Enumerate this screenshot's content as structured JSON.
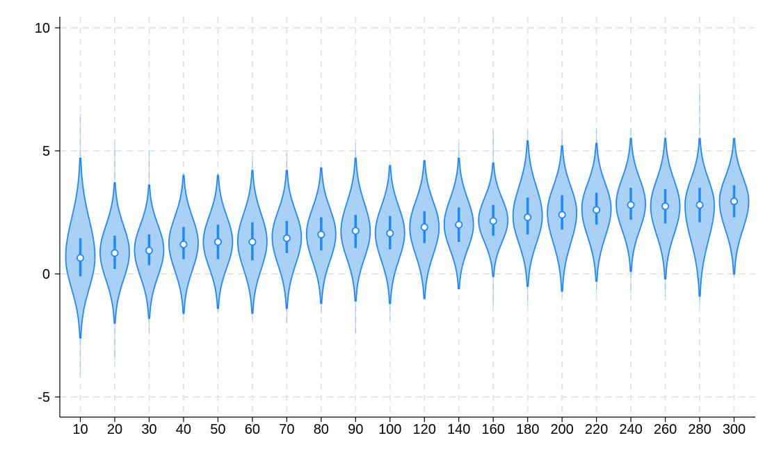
{
  "chart_data": {
    "type": "violin",
    "title": "",
    "xlabel": "",
    "ylabel": "",
    "ylim": [
      -5.7,
      10.4
    ],
    "y_ticks": [
      "-5",
      "0",
      "5",
      "10"
    ],
    "y_tick_values": [
      -5,
      0,
      5,
      10
    ],
    "categories": [
      "10",
      "20",
      "30",
      "40",
      "50",
      "60",
      "70",
      "80",
      "90",
      "100",
      "120",
      "140",
      "160",
      "180",
      "200",
      "220",
      "240",
      "260",
      "280",
      "300"
    ],
    "grid": "dashed, both axes",
    "colors": {
      "fill": "#a9d0f5",
      "stroke": "#1e88ff",
      "grid": "#e6e6e6",
      "axis": "#000000"
    },
    "series": [
      {
        "median": [
          0.65,
          0.85,
          0.95,
          1.2,
          1.3,
          1.3,
          1.45,
          1.6,
          1.75,
          1.65,
          1.9,
          2.0,
          2.15,
          2.3,
          2.4,
          2.6,
          2.8,
          2.75,
          2.8,
          2.95
        ],
        "q1": [
          -0.1,
          0.2,
          0.35,
          0.6,
          0.6,
          0.55,
          0.85,
          0.95,
          1.05,
          1.0,
          1.25,
          1.3,
          1.55,
          1.6,
          1.8,
          2.0,
          2.2,
          2.05,
          2.1,
          2.3
        ],
        "q3": [
          1.45,
          1.55,
          1.6,
          1.9,
          2.0,
          2.1,
          2.15,
          2.3,
          2.4,
          2.35,
          2.55,
          2.7,
          2.8,
          3.1,
          3.2,
          3.3,
          3.5,
          3.45,
          3.5,
          3.6
        ],
        "min": [
          -4.1,
          -3.5,
          -2.4,
          -1.8,
          -1.6,
          -1.8,
          -2.0,
          -1.6,
          -2.4,
          -1.9,
          -1.0,
          -0.6,
          -1.3,
          -1.3,
          -0.9,
          -0.8,
          -0.8,
          -0.9,
          -1.3,
          -0.1
        ],
        "max": [
          6.5,
          5.3,
          5.0,
          4.1,
          4.1,
          4.8,
          4.9,
          4.3,
          5.3,
          4.4,
          4.6,
          5.3,
          5.8,
          5.8,
          5.8,
          5.9,
          5.9,
          5.8,
          7.5,
          5.5
        ],
        "body_low": [
          -2.6,
          -2.0,
          -1.8,
          -1.6,
          -1.4,
          -1.6,
          -1.4,
          -1.2,
          -1.1,
          -1.2,
          -1.0,
          -0.6,
          -0.1,
          -0.5,
          -0.7,
          -0.3,
          0.1,
          -0.2,
          -0.9,
          0.0
        ],
        "body_high": [
          4.7,
          3.7,
          3.6,
          4.0,
          4.0,
          4.2,
          4.2,
          4.3,
          4.7,
          4.4,
          4.6,
          4.7,
          4.5,
          5.4,
          5.2,
          5.3,
          5.5,
          5.5,
          5.5,
          5.5
        ]
      }
    ]
  }
}
